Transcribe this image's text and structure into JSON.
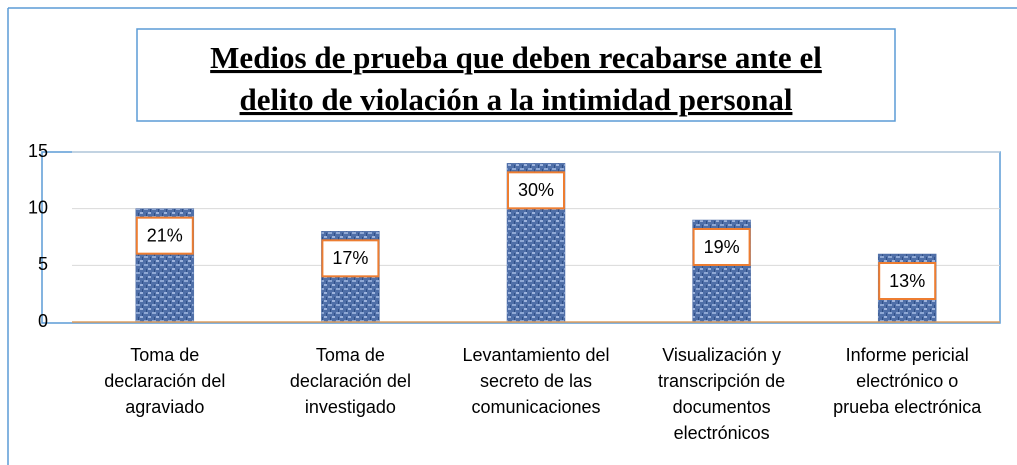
{
  "chart_data": {
    "type": "bar",
    "title": "Medios de prueba que deben recabarse ante el\ndelito de violación a la intimidad personal",
    "categories": [
      "Toma de\ndeclaración del\nagraviado",
      "Toma de\ndeclaración del\ninvestigado",
      "Levantamiento del\nsecreto de las\ncomunicaciones",
      "Visualización y\ntranscripción de\ndocumentos\nelectrónicos",
      "Informe pericial\nelectrónico o\nprueba electrónica"
    ],
    "values": [
      10,
      8,
      14,
      9,
      6
    ],
    "data_labels": [
      "21%",
      "17%",
      "30%",
      "19%",
      "13%"
    ],
    "color": "#4f6fa8",
    "ylim": [
      0,
      15
    ],
    "yticks": [
      0,
      5,
      10,
      15
    ],
    "grid": true
  }
}
